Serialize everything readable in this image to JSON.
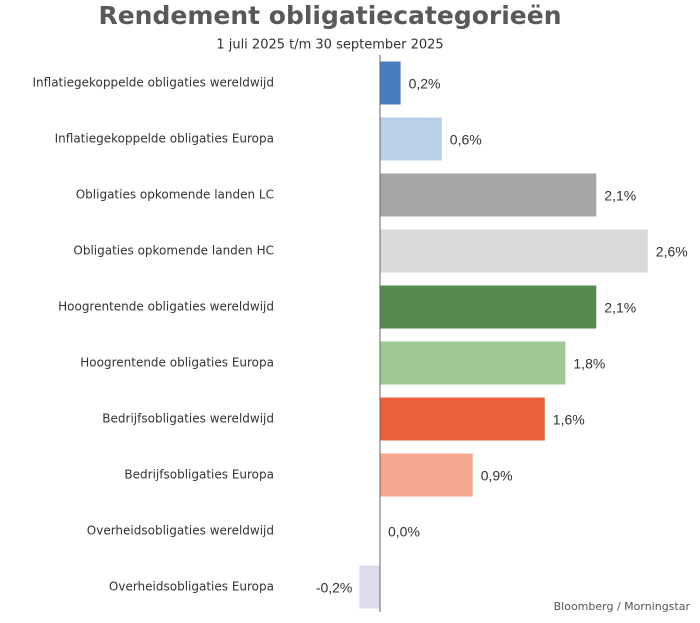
{
  "chart_data": {
    "type": "barh",
    "title": "Rendement obligatiecategorieën",
    "subtitle": "1 juli 2025 t/m 30 september 2025",
    "source": "Bloomberg / Morningstar",
    "categories": [
      "Inflatiegekoppelde obligaties wereldwijd",
      "Inflatiegekoppelde obligaties Europa",
      "Obligaties opkomende landen LC",
      "Obligaties opkomende landen HC",
      "Hoogrentende obligaties wereldwijd",
      "Hoogrentende obligaties Europa",
      "Bedrijfsobligaties wereldwijd",
      "Bedrijfsobligaties Europa",
      "Overheidsobligaties wereldwijd",
      "Overheidsobligaties Europa"
    ],
    "values": [
      0.2,
      0.6,
      2.1,
      2.6,
      2.1,
      1.8,
      1.6,
      0.9,
      0.0,
      -0.2
    ],
    "value_labels": [
      "0,2%",
      "0,6%",
      "2,1%",
      "2,6%",
      "2,1%",
      "1,8%",
      "1,6%",
      "0,9%",
      "0,0%",
      "-0,2%"
    ],
    "colors": [
      "#4a7cc0",
      "#b9cfe8",
      "#a6a6a6",
      "#d9d9d9",
      "#548b4c",
      "#9cc893",
      "#ea6139",
      "#f4a890",
      "#c8c8c8",
      "#dcdcec"
    ]
  }
}
